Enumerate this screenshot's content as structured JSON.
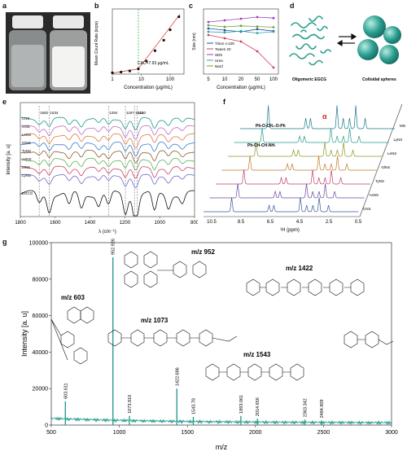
{
  "panel_a": {
    "label": "a",
    "bg_color": "#2a2a2a"
  },
  "panel_b": {
    "label": "b",
    "annotation": "CAC=7.93 μg/mL",
    "chart_data": {
      "type": "scatter",
      "xlabel": "Concentration (μg/mL)",
      "ylabel": "Mean Count Rate (kcps)",
      "xscale": "log",
      "xticks": [
        "1",
        "10",
        "100"
      ],
      "points": [
        [
          1,
          0.5
        ],
        [
          2,
          0.8
        ],
        [
          4,
          1.2
        ],
        [
          7.93,
          2.0
        ],
        [
          15,
          5
        ],
        [
          30,
          9
        ],
        [
          60,
          13
        ],
        [
          100,
          17
        ],
        [
          200,
          22
        ]
      ],
      "cac_x": 7.93,
      "accent": "#d22"
    }
  },
  "panel_c": {
    "label": "c",
    "chart_data": {
      "type": "line",
      "xlabel": "Concentration (μg/mL)",
      "ylabel": "Size (nm)",
      "x": [
        5,
        10,
        20,
        50,
        100
      ],
      "xticks": [
        "5",
        "10",
        "20",
        "50",
        "100"
      ],
      "series": [
        {
          "name": "Triton x-100",
          "color": "#1f4fa0",
          "values": [
            180,
            175,
            170,
            178,
            172
          ]
        },
        {
          "name": "Tween 20",
          "color": "#d04060",
          "values": [
            160,
            150,
            140,
            110,
            60
          ]
        },
        {
          "name": "SDS",
          "color": "#9a40c0",
          "values": [
            200,
            205,
            210,
            215,
            212
          ]
        },
        {
          "name": "Urea",
          "color": "#30a0b0",
          "values": [
            170,
            168,
            172,
            166,
            170
          ]
        },
        {
          "name": "NaCl",
          "color": "#70a030",
          "values": [
            190,
            185,
            188,
            186,
            184
          ]
        }
      ]
    }
  },
  "panel_d": {
    "label": "d",
    "left_caption": "Oligomeric EGCG",
    "right_caption": "Colloidal spheres",
    "accent": "#2a9d8f"
  },
  "panel_e": {
    "label": "e",
    "xlabel": "λ (cm⁻¹)",
    "ylabel": "Intensity [a. u]",
    "xticks": [
      "1800",
      "1600",
      "1400",
      "1200",
      "1000",
      "800"
    ],
    "peak_labels": [
      "1692",
      "1634",
      "1294",
      "1197",
      "1145",
      "1130"
    ],
    "series_names": [
      "CNS",
      "GNS",
      "LeNS",
      "GlNS",
      "TyNS",
      "AsNS",
      "MNS",
      "LyNS",
      "EGCG"
    ]
  },
  "panel_f": {
    "label": "f",
    "xlabel": "¹H (ppm)",
    "xticks": [
      "10.5",
      "8.5",
      "6.5",
      "4.5",
      "2.5",
      "0.5"
    ],
    "annot_1": "Ph-O-CH₂-O-Ph",
    "annot_2": "Ph-CH-CH-NH-",
    "alpha": "α",
    "series_names": [
      "MNS",
      "LyNS",
      "LeNS",
      "GlNS",
      "TyNS",
      "AsNS",
      "CNS"
    ]
  },
  "panel_g": {
    "label": "g",
    "xlabel": "m/z",
    "ylabel": "Intensity [a. u]",
    "accent": "#2a9d8f",
    "struct_labels": [
      "m/z 603",
      "m/z 952",
      "m/z 1422",
      "m/z 1073",
      "m/z 1543"
    ],
    "chart_data": {
      "type": "bar",
      "xlim": [
        500,
        3000
      ],
      "ylim": [
        0,
        100000
      ],
      "xticks": [
        "500",
        "1000",
        "1500",
        "2000",
        "2500",
        "3000"
      ],
      "yticks": [
        "0",
        "20000",
        "40000",
        "60000",
        "80000",
        "100000"
      ],
      "peaks": [
        {
          "mz": 603.611,
          "label": "603.611",
          "value": 13000
        },
        {
          "mz": 952.926,
          "label": "952.926",
          "value": 92000
        },
        {
          "mz": 1073.81,
          "label": "1073.810",
          "value": 5000
        },
        {
          "mz": 1422.686,
          "label": "1422.686",
          "value": 20000
        },
        {
          "mz": 1543.78,
          "label": "1543.78",
          "value": 4500
        },
        {
          "mz": 1893.061,
          "label": "1893.061",
          "value": 5000
        },
        {
          "mz": 2014.656,
          "label": "2014.656",
          "value": 3500
        },
        {
          "mz": 2363.342,
          "label": "2363.342",
          "value": 3000
        },
        {
          "mz": 2484.909,
          "label": "2484.909",
          "value": 2500
        }
      ]
    }
  }
}
